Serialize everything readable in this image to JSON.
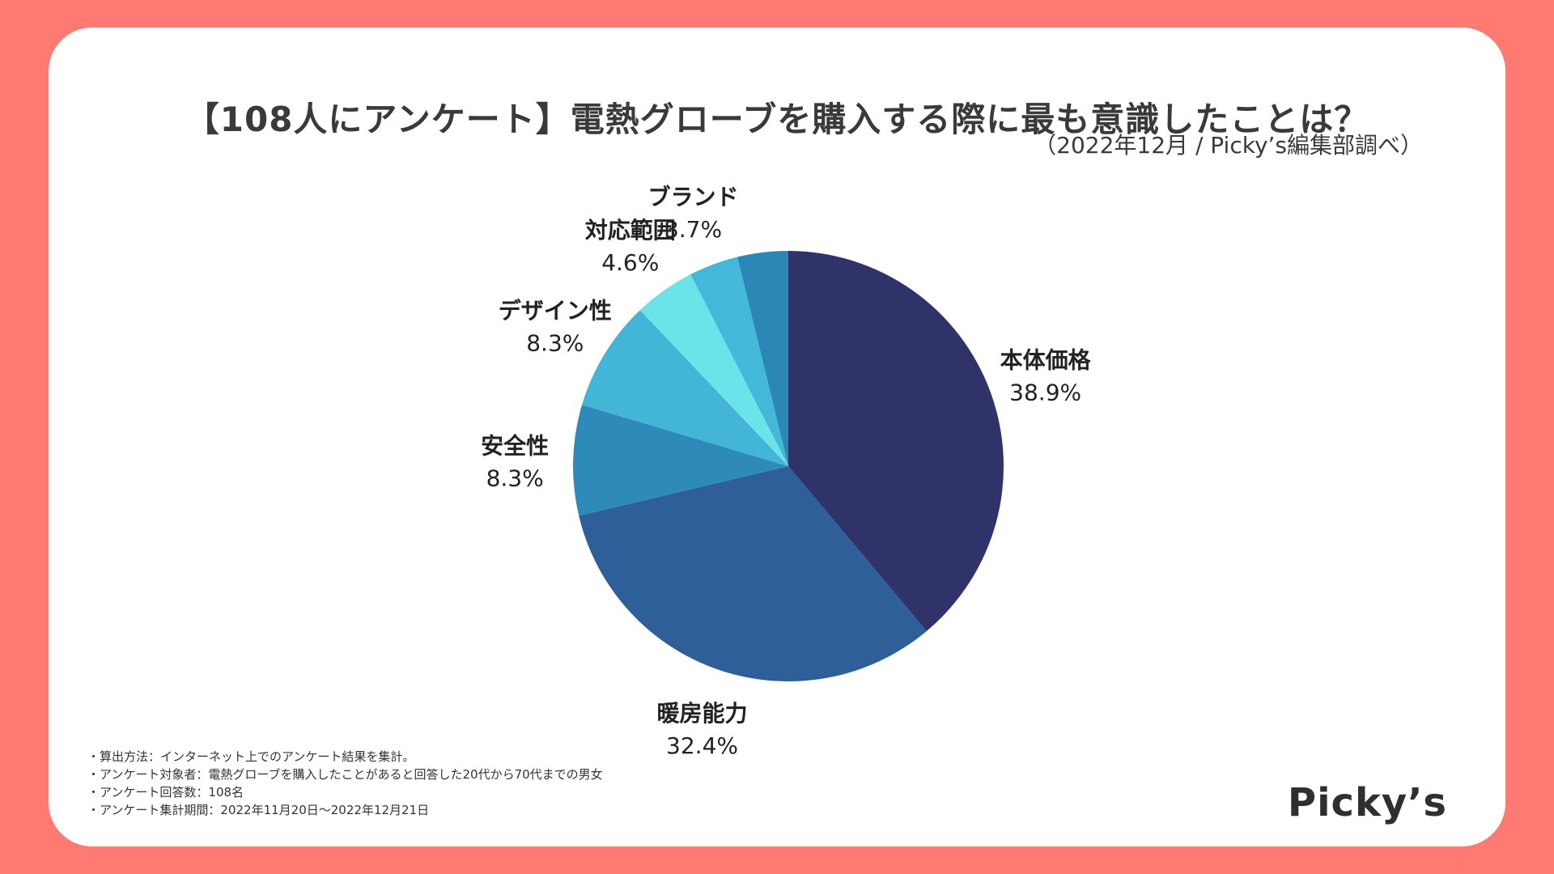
{
  "chart_data": {
    "type": "pie",
    "title": "【108人にアンケート】電熱グローブを購入する際に最も意識したことは？",
    "subtitle": "（2022年12月 / Picky’s編集部調べ）",
    "slices": [
      {
        "label": "本体価格",
        "value": 38.9,
        "value_label": "38.9%",
        "color": "#2f336a"
      },
      {
        "label": "暖房能力",
        "value": 32.4,
        "value_label": "32.4%",
        "color": "#2e5f98"
      },
      {
        "label": "安全性",
        "value": 8.3,
        "value_label": "8.3%",
        "color": "#2e8ab9"
      },
      {
        "label": "デザイン性",
        "value": 8.3,
        "value_label": "8.3%",
        "color": "#43b6d7"
      },
      {
        "label": "対応範囲",
        "value": 4.6,
        "value_label": "4.6%",
        "color": "#6be3e9"
      },
      {
        "label": "ブランド",
        "value": 3.7,
        "value_label": "3.7%",
        "color": "#44b8d8"
      },
      {
        "label": "",
        "value": 3.8,
        "value_label": "",
        "color": "#2c87b6"
      }
    ]
  },
  "notes": [
    "・算出方法：インターネット上でのアンケート結果を集計。",
    "・アンケート対象者：電熱グローブを購入したことがあると回答した20代から70代までの男女",
    "・アンケート回答数：108名",
    "・アンケート集計期間：2022年11月20日〜2022年12月21日"
  ],
  "logo": "Picky’s",
  "colors": {
    "background": "#ff7a72",
    "card": "#ffffff",
    "text": "#333333"
  }
}
